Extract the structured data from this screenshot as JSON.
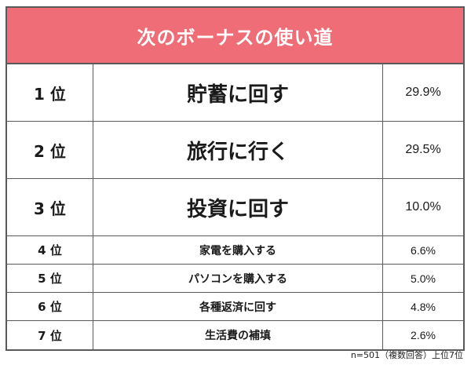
{
  "title": "次のボーナスの使い道",
  "colors": {
    "header_bg": "#ee6d76",
    "header_text": "#ffffff",
    "border": "#5a5a5a"
  },
  "rankings": [
    {
      "rank": "1 位",
      "item": "貯蓄に回す",
      "percent": "29.9%"
    },
    {
      "rank": "2 位",
      "item": "旅行に行く",
      "percent": "29.5%"
    },
    {
      "rank": "3 位",
      "item": "投資に回す",
      "percent": "10.0%"
    },
    {
      "rank": "4 位",
      "item": "家電を購入する",
      "percent": "6.6%"
    },
    {
      "rank": "5 位",
      "item": "パソコンを購入する",
      "percent": "5.0%"
    },
    {
      "rank": "6 位",
      "item": "各種返済に回す",
      "percent": "4.8%"
    },
    {
      "rank": "7 位",
      "item": "生活費の補填",
      "percent": "2.6%"
    }
  ],
  "footnote": "n=501（複数回答）上位7位"
}
